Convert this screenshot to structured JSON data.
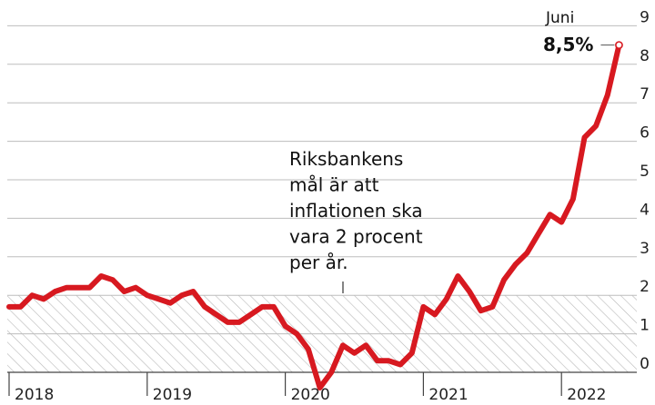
{
  "chart_data": {
    "type": "line",
    "x_tick_labels": [
      "2018",
      "2019",
      "2020",
      "2021",
      "2022"
    ],
    "y_ticks": [
      0,
      1,
      2,
      3,
      4,
      5,
      6,
      7,
      8,
      9
    ],
    "ylim": [
      0,
      9
    ],
    "grid": true,
    "target_band": [
      0,
      2
    ],
    "annotation": "Riksbankens mål är att inflationen ska vara 2 procent per år.",
    "annotation_lines": [
      "Riksbankens",
      "mål är att",
      "inflationen ska",
      "vara 2 procent",
      "per år."
    ],
    "end_label_month": "Juni",
    "end_label_value": "8,5%",
    "colors": {
      "line": "#d71920",
      "grid": "#bdbdbd",
      "hatch": "#b8b8b8"
    },
    "series": [
      {
        "x": [
          "2018-01",
          "2018-02",
          "2018-03",
          "2018-04",
          "2018-05",
          "2018-06",
          "2018-07",
          "2018-08",
          "2018-09",
          "2018-10",
          "2018-11",
          "2018-12",
          "2019-01",
          "2019-02",
          "2019-03",
          "2019-04",
          "2019-05",
          "2019-06",
          "2019-07",
          "2019-08",
          "2019-09",
          "2019-10",
          "2019-11",
          "2019-12",
          "2020-01",
          "2020-02",
          "2020-03",
          "2020-04",
          "2020-05",
          "2020-06",
          "2020-07",
          "2020-08",
          "2020-09",
          "2020-10",
          "2020-11",
          "2020-12",
          "2021-01",
          "2021-02",
          "2021-03",
          "2021-04",
          "2021-05",
          "2021-06",
          "2021-07",
          "2021-08",
          "2021-09",
          "2021-10",
          "2021-11",
          "2021-12",
          "2022-01",
          "2022-02",
          "2022-03",
          "2022-04",
          "2022-05",
          "2022-06"
        ],
        "values": [
          1.7,
          1.7,
          2.0,
          1.9,
          2.1,
          2.2,
          2.2,
          2.2,
          2.5,
          2.4,
          2.1,
          2.2,
          2.0,
          1.9,
          1.8,
          2.0,
          2.1,
          1.7,
          1.5,
          1.3,
          1.3,
          1.5,
          1.7,
          1.7,
          1.2,
          1.0,
          0.6,
          -0.4,
          0.0,
          0.7,
          0.5,
          0.7,
          0.3,
          0.3,
          0.2,
          0.5,
          1.7,
          1.5,
          1.9,
          2.5,
          2.1,
          1.6,
          1.7,
          2.4,
          2.8,
          3.1,
          3.6,
          4.1,
          3.9,
          4.5,
          6.1,
          6.4,
          7.2,
          8.5
        ]
      }
    ]
  }
}
